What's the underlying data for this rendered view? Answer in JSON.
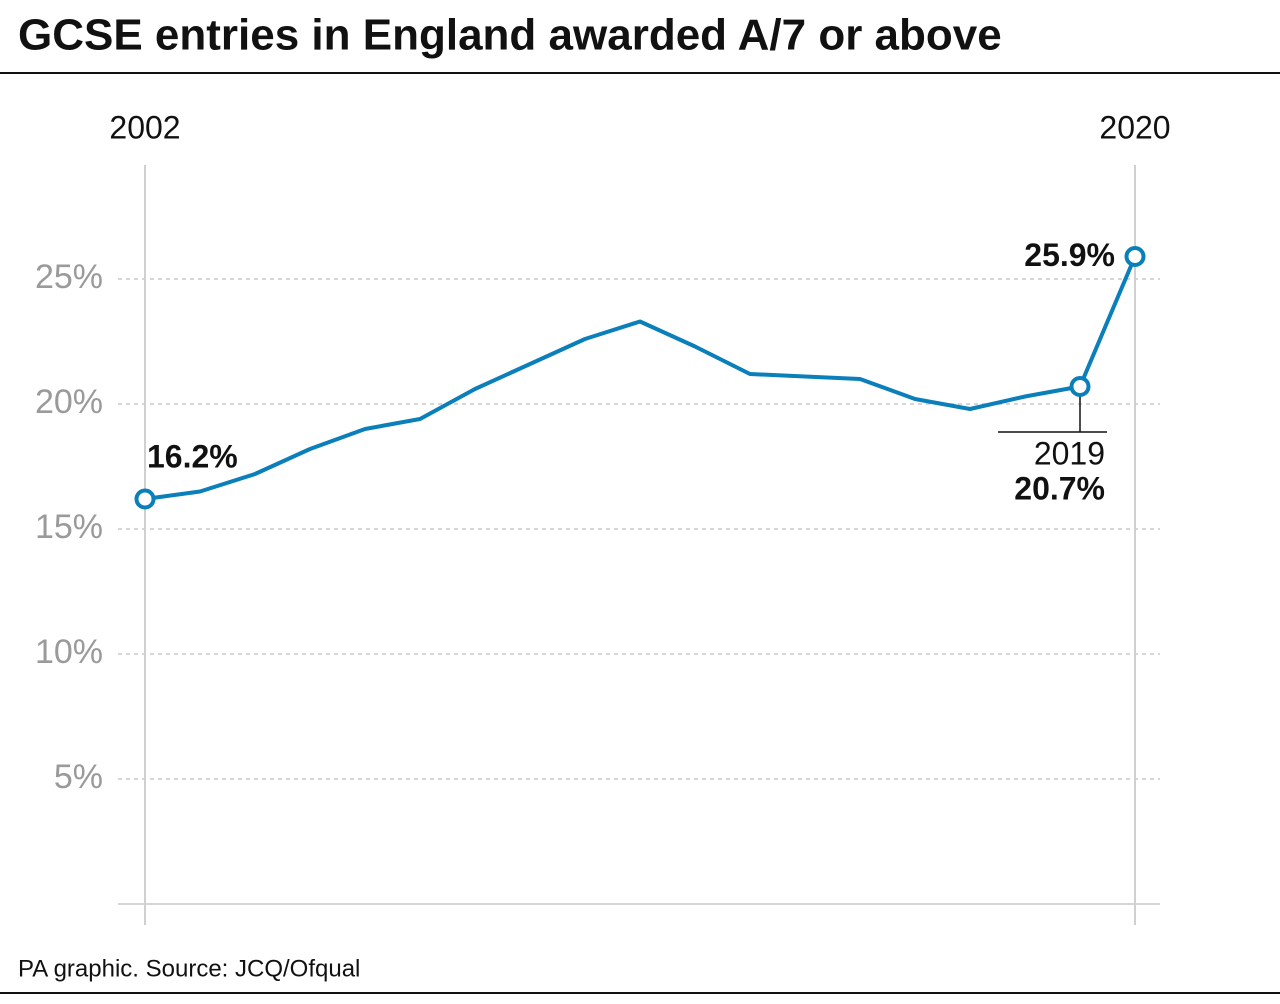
{
  "chart_data": {
    "type": "line",
    "title": "GCSE entries in England awarded A/7 or above",
    "source": "PA graphic. Source: JCQ/Ofqual",
    "x": [
      2002,
      2003,
      2004,
      2005,
      2006,
      2007,
      2008,
      2009,
      2010,
      2011,
      2012,
      2013,
      2014,
      2015,
      2016,
      2017,
      2018,
      2019,
      2020
    ],
    "values": [
      16.2,
      16.5,
      17.2,
      18.2,
      19.0,
      19.4,
      20.6,
      21.6,
      22.6,
      23.3,
      22.3,
      21.2,
      21.1,
      21.0,
      20.2,
      19.8,
      20.3,
      20.7,
      25.9
    ],
    "value_labels": [
      "16.2%",
      null,
      null,
      null,
      null,
      null,
      null,
      null,
      null,
      null,
      null,
      null,
      null,
      null,
      null,
      null,
      null,
      "20.7%",
      "25.9%"
    ],
    "annotations": [
      {
        "x": 2019,
        "text": "2019"
      }
    ],
    "color": "#0a7fba",
    "xlim": [
      2002,
      2020
    ],
    "xticks": [
      2002,
      2020
    ],
    "ylim": [
      0,
      30
    ],
    "yticks": [
      {
        "value": 5,
        "label": "5%"
      },
      {
        "value": 10,
        "label": "10%"
      },
      {
        "value": 15,
        "label": "15%"
      },
      {
        "value": 20,
        "label": "20%"
      },
      {
        "value": 25,
        "label": "25%"
      }
    ],
    "grid": true
  }
}
